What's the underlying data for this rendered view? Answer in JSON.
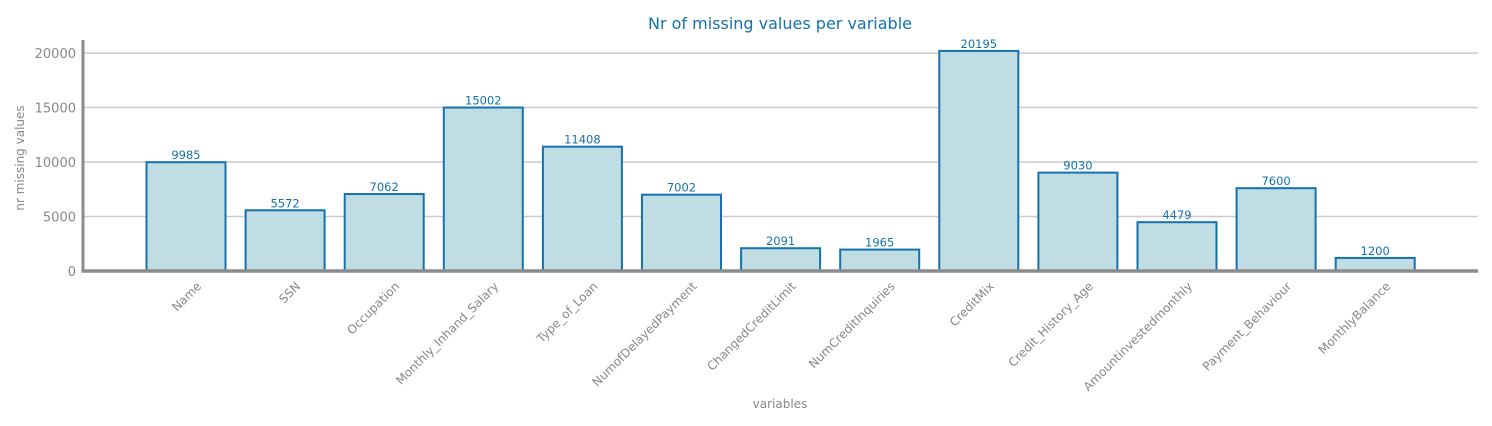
{
  "chart_data": {
    "type": "bar",
    "title": "Nr of missing values per variable",
    "xlabel": "variables",
    "ylabel": "nr missing values",
    "categories": [
      "Name",
      "SSN",
      "Occupation",
      "Monthly_Inhand_Salary",
      "Type_of_Loan",
      "NumofDelayedPayment",
      "ChangedCreditLimit",
      "NumCreditInquiries",
      "CreditMix",
      "Credit_History_Age",
      "Amountinvestedmonthly",
      "Payment_Behaviour",
      "MonthlyBalance"
    ],
    "values": [
      9985,
      5572,
      7062,
      15002,
      11408,
      7002,
      2091,
      1965,
      20195,
      9030,
      4479,
      7600,
      1200
    ],
    "data_labels": [
      "9985",
      "5572",
      "7062",
      "15002",
      "11408",
      "7002",
      "2091",
      "1965",
      "20195",
      "9030",
      "4479",
      "7600",
      "1200"
    ],
    "yticks": [
      0,
      5000,
      10000,
      15000,
      20000
    ],
    "ytick_labels": [
      "0",
      "5000",
      "10000",
      "15000",
      "20000"
    ],
    "ylim": [
      0,
      21200
    ],
    "grid": true,
    "colors": {
      "bar_fill": "#bfdde2",
      "bar_edge": "#1472b0",
      "title": "#1472b0",
      "data_label": "#1472b0",
      "axis": "#8c8c8c",
      "grid": "#cccccc",
      "tick_text": "#888888"
    }
  }
}
